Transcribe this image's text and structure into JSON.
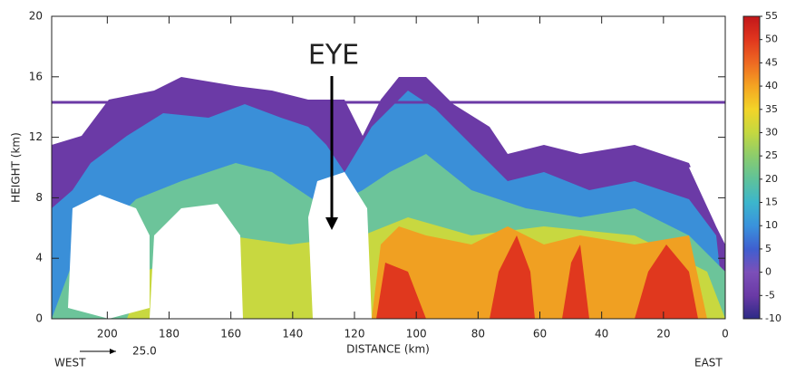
{
  "chart_data": {
    "type": "cross-section",
    "xlabel": "DISTANCE (km)",
    "ylabel": "HEIGHT (km)",
    "xlim": [
      218,
      0
    ],
    "xticks": [
      200,
      180,
      160,
      140,
      120,
      100,
      80,
      60,
      40,
      20,
      0
    ],
    "ylim": [
      0,
      20
    ],
    "yticks": [
      0,
      4,
      8,
      12,
      16,
      20
    ],
    "annotations": {
      "eye": "EYE",
      "west": "WEST",
      "east": "EAST"
    },
    "vector_scale": {
      "value": 25,
      "label": "25.0"
    },
    "colorbar": {
      "lim": [
        -10,
        55
      ],
      "ticks": [
        -10,
        -5,
        0,
        5,
        10,
        15,
        20,
        25,
        30,
        35,
        40,
        45,
        50,
        55
      ],
      "colors": [
        "#2c2a86",
        "#6a3aa6",
        "#7c4fb8",
        "#3f5fd0",
        "#3a92dc",
        "#3cb6cc",
        "#5fc29a",
        "#8ccc6c",
        "#c4d840",
        "#f2d428",
        "#f4a422",
        "#ee6a22",
        "#e0361e",
        "#c2161a"
      ]
    }
  }
}
